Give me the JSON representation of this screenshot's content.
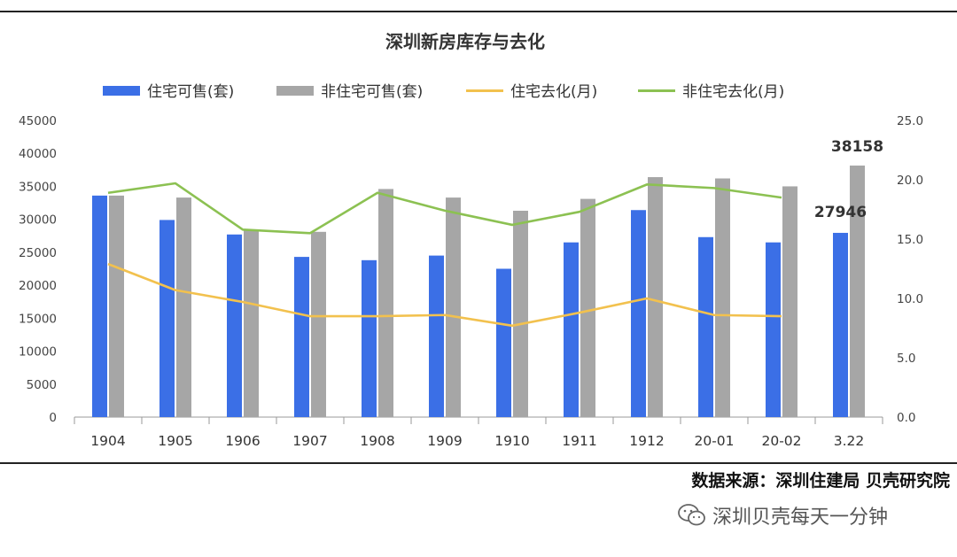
{
  "chart_data": {
    "type": "bar",
    "title": "深圳新房库存与去化",
    "categories": [
      "1904",
      "1905",
      "1906",
      "1907",
      "1908",
      "1909",
      "1910",
      "1911",
      "1912",
      "20-01",
      "20-02",
      "3.22"
    ],
    "series": [
      {
        "name": "住宅可售(套)",
        "kind": "bar",
        "axis": "left",
        "color": "#3B6FE6",
        "values": [
          33600,
          29900,
          27700,
          24300,
          23800,
          24500,
          22500,
          26500,
          31400,
          27300,
          26500,
          27946
        ]
      },
      {
        "name": "非住宅可售(套)",
        "kind": "bar",
        "axis": "left",
        "color": "#A6A6A6",
        "values": [
          33600,
          33300,
          28300,
          28100,
          34600,
          33300,
          31300,
          33100,
          36400,
          36200,
          35000,
          38158
        ]
      },
      {
        "name": "住宅去化(月)",
        "kind": "line",
        "axis": "right",
        "color": "#F2C14E",
        "values": [
          12.9,
          10.7,
          9.7,
          8.5,
          8.5,
          8.6,
          7.7,
          8.8,
          10.0,
          8.6,
          8.5,
          null
        ]
      },
      {
        "name": "非住宅去化(月)",
        "kind": "line",
        "axis": "right",
        "color": "#8CC152",
        "values": [
          18.9,
          19.7,
          15.8,
          15.5,
          18.9,
          17.4,
          16.2,
          17.3,
          19.6,
          19.3,
          18.5,
          null
        ]
      }
    ],
    "ylim_left": [
      0,
      45000
    ],
    "yticks_left": [
      "0",
      "5000",
      "10000",
      "15000",
      "20000",
      "25000",
      "30000",
      "35000",
      "40000",
      "45000"
    ],
    "ylim_right": [
      0,
      25
    ],
    "yticks_right": [
      "0.0",
      "5.0",
      "10.0",
      "15.0",
      "20.0",
      "25.0"
    ],
    "data_labels": [
      {
        "series": 0,
        "index": 11,
        "text": "27946"
      },
      {
        "series": 1,
        "index": 11,
        "text": "38158"
      }
    ],
    "grid": false,
    "legend_position": "top"
  },
  "source_text": "数据来源：深圳住建局  贝壳研究院",
  "watermark_text": "深圳贝壳每天一分钟",
  "watermark_icon": "wechat-icon"
}
